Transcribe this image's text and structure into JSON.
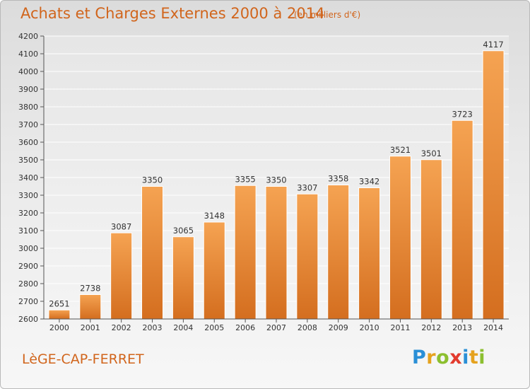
{
  "header": {
    "title": "Achats et Charges Externes 2000 à 2014",
    "subtitle": "(en milliers d'€)"
  },
  "footer": {
    "location": "LèGE-CAP-FERRET",
    "logo_letters": [
      {
        "char": "P",
        "color": "#2a8fd6"
      },
      {
        "char": "r",
        "color": "#e5a21e"
      },
      {
        "char": "o",
        "color": "#8cbf2f"
      },
      {
        "char": "x",
        "color": "#e23b2e"
      },
      {
        "char": "i",
        "color": "#2a8fd6"
      },
      {
        "char": "t",
        "color": "#e5a21e"
      },
      {
        "char": "i",
        "color": "#8cbf2f"
      }
    ]
  },
  "chart_data": {
    "type": "bar",
    "categories": [
      "2000",
      "2001",
      "2002",
      "2003",
      "2004",
      "2005",
      "2006",
      "2007",
      "2008",
      "2009",
      "2010",
      "2011",
      "2012",
      "2013",
      "2014"
    ],
    "values": [
      2651,
      2738,
      3087,
      3350,
      3065,
      3148,
      3355,
      3350,
      3307,
      3358,
      3342,
      3521,
      3501,
      3723,
      4117
    ],
    "title": "Achats et Charges Externes 2000 à 2014",
    "subtitle": "(en milliers d'€)",
    "xlabel": "",
    "ylabel": "",
    "ylim": [
      2600,
      4200
    ],
    "yticks": [
      2600,
      2700,
      2800,
      2900,
      3000,
      3100,
      3200,
      3300,
      3400,
      3500,
      3600,
      3700,
      3800,
      3900,
      4000,
      4100,
      4200
    ],
    "grid": true,
    "bar_color_top": "#f5a352",
    "bar_color_bottom": "#d46e1f"
  }
}
